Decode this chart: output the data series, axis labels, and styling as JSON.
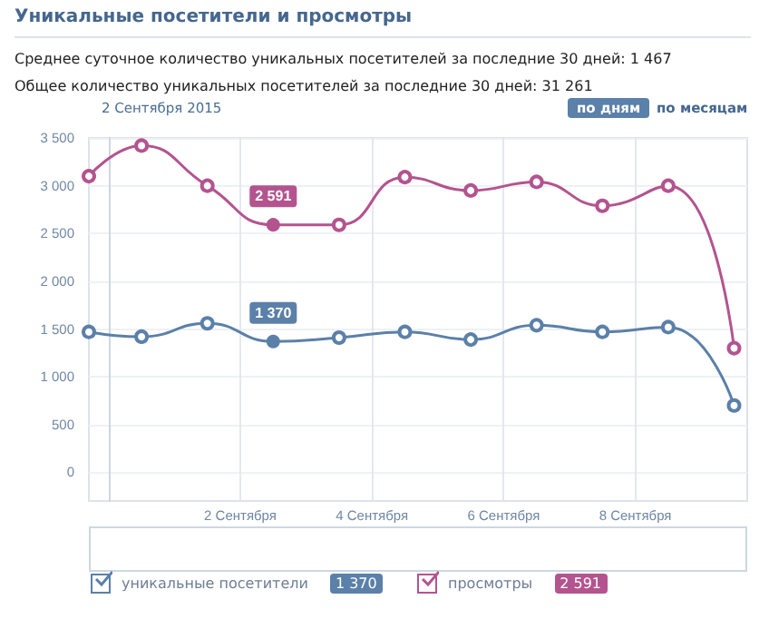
{
  "chart_data": {
    "type": "line",
    "title": "Уникальные посетители и просмотры",
    "annotations": [
      "Среднее суточное количество уникальных посетителей за последние 30 дней: 1 467",
      "Общее количество уникальных посетителей за последние 30 дней: 31 261",
      "2 Сентября 2015",
      "по дням",
      "по месяцам"
    ],
    "series": [
      {
        "name": "уникальные посетители",
        "color": "#5b80a9",
        "x": [
          -0.3,
          0.5,
          1.5,
          2.5,
          3.5,
          4.5,
          5.5,
          6.5,
          7.5,
          8.5,
          9.5
        ],
        "values": [
          1470,
          1420,
          1560,
          1370,
          1410,
          1470,
          1390,
          1540,
          1470,
          1520,
          700
        ],
        "value_labels": [
          null,
          null,
          null,
          "1 370",
          null,
          null,
          null,
          null,
          null,
          null,
          null
        ]
      },
      {
        "name": "просмотры",
        "color": "#b3548f",
        "x": [
          -0.3,
          0.5,
          1.5,
          2.5,
          3.5,
          4.5,
          5.5,
          6.5,
          7.5,
          8.5,
          9.5
        ],
        "values": [
          3100,
          3420,
          3000,
          2591,
          2590,
          3090,
          2950,
          3040,
          2790,
          3000,
          1300
        ],
        "value_labels": [
          null,
          null,
          null,
          "2 591",
          null,
          null,
          null,
          null,
          null,
          null,
          null
        ]
      }
    ],
    "xlim": [
      -0.3,
      9.7
    ],
    "xticks": [
      {
        "value": 0,
        "label": null
      },
      {
        "value": 2,
        "label": "2 Сентября"
      },
      {
        "value": 4,
        "label": "4 Сентября"
      },
      {
        "value": 6,
        "label": "6 Сентября"
      },
      {
        "value": 8,
        "label": "8 Сентября"
      }
    ],
    "ylim": [
      -300,
      3500
    ],
    "yticks": [
      0,
      500,
      {
        "value": 1000,
        "label": "1 000"
      },
      {
        "value": 1500,
        "label": "1 500"
      },
      {
        "value": 2000,
        "label": "2 000"
      },
      {
        "value": 2500,
        "label": "2 500"
      },
      {
        "value": 3000,
        "label": "3 000"
      },
      {
        "value": 3500,
        "label": "3 500"
      }
    ],
    "grid": true,
    "legend": "bottom",
    "marker": "circle",
    "line_style": "solid"
  }
}
